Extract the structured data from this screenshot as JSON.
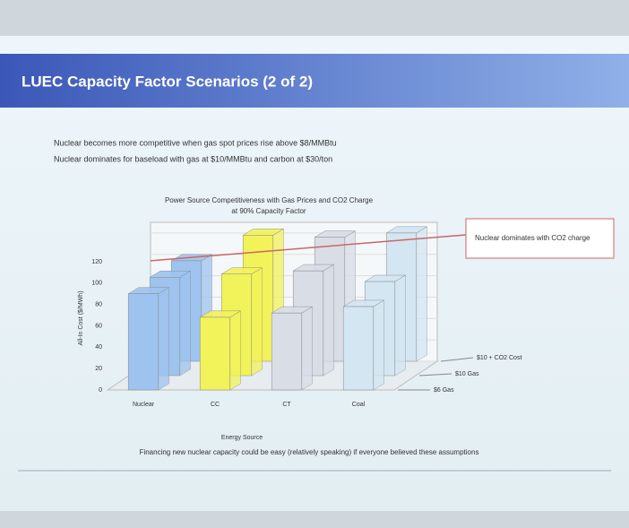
{
  "slide": {
    "title": "LUEC Capacity Factor Scenarios (2 of 2)",
    "bullets": [
      "Nuclear becomes more competitive when gas spot prices rise above $8/MMBtu",
      "Nuclear dominates for baseload with gas at $10/MMBtu and carbon at $30/ton"
    ],
    "footer": "Financing new nuclear capacity could be easy (relatively speaking) if everyone believed these assumptions"
  },
  "chart_data": {
    "type": "bar",
    "title": "Power Source Competitiveness with Gas Prices and CO2 Charge",
    "subtitle": "at 90% Capacity Factor",
    "x_label": "Energy Source",
    "y_label": "All-In Cost ($/MWh)",
    "categories": [
      "Nuclear",
      "CC",
      "CT",
      "Coal"
    ],
    "colors": [
      "#9ec3ee",
      "#f2f25a",
      "#d9dde6",
      "#d3e6f2"
    ],
    "series": [
      {
        "name": "$6 Gas",
        "values": [
          90,
          68,
          72,
          78
        ]
      },
      {
        "name": "$10 Gas",
        "values": [
          92,
          95,
          98,
          88
        ]
      },
      {
        "name": "$10 + CO2 Cost",
        "values": [
          94,
          118,
          116,
          120
        ]
      }
    ],
    "ylim": [
      0,
      130
    ],
    "yticks": [
      0,
      20,
      40,
      60,
      80,
      100,
      120
    ],
    "annotation": "Nuclear dominates with CO2 charge"
  }
}
